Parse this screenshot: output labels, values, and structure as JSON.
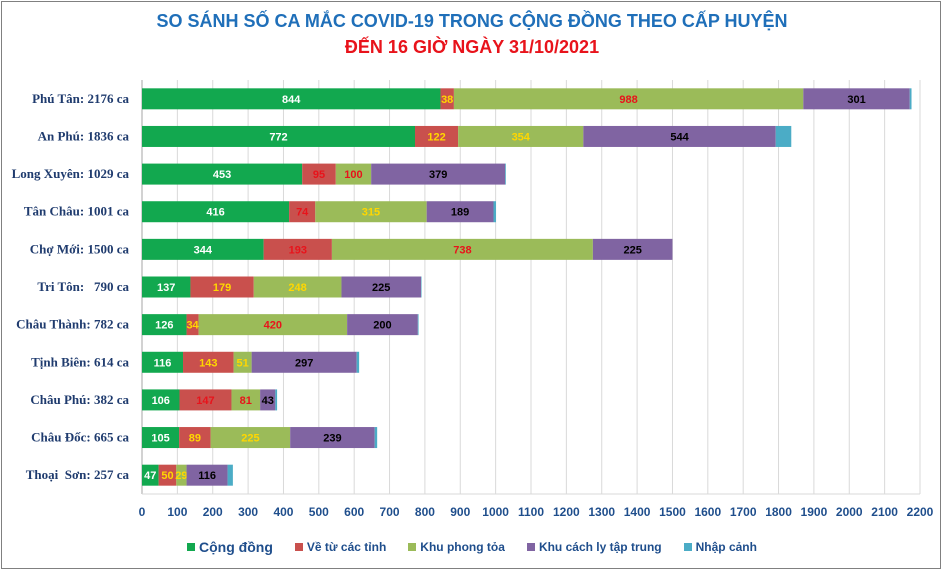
{
  "chart_data": {
    "type": "bar",
    "orientation": "horizontal",
    "stacked": true,
    "title": "SO SÁNH SỐ CA MẮC COVID-19 TRONG CỘNG ĐỒNG THEO CẤP HUYỆN",
    "subtitle": "ĐẾN 16 GIỜ NGÀY 31/10/2021",
    "categories": [
      "Phú Tân: 2176 ca",
      "An Phú: 1836 ca",
      "Long Xuyên: 1029 ca",
      "Tân Châu: 1001 ca",
      "Chợ Mới: 1500 ca",
      "Tri Tôn:   790 ca",
      "Châu Thành: 782 ca",
      "Tịnh Biên: 614 ca",
      "Châu Phú: 382 ca",
      "Châu Đốc: 665 ca",
      "Thoại  Sơn: 257 ca"
    ],
    "series": [
      {
        "name": "Cộng đồng",
        "color": "#12a84f",
        "label_color": "#ffffff",
        "values": [
          844,
          772,
          453,
          416,
          344,
          137,
          126,
          116,
          106,
          105,
          47
        ]
      },
      {
        "name": "Về từ các tỉnh",
        "color": "#c9504d",
        "label_color": "#ffd700",
        "values": [
          38,
          122,
          95,
          74,
          193,
          179,
          34,
          143,
          147,
          89,
          50
        ]
      },
      {
        "name": "Khu phong tỏa",
        "color": "#9bbb59",
        "label_color": "#e8131b",
        "values": [
          988,
          354,
          100,
          315,
          738,
          248,
          420,
          51,
          81,
          225,
          29
        ]
      },
      {
        "name": "Khu cách ly tập trung",
        "color": "#8064a2",
        "label_color": "#000000",
        "values": [
          301,
          544,
          379,
          189,
          225,
          225,
          200,
          297,
          43,
          239,
          116
        ]
      },
      {
        "name": "Nhập cảnh",
        "color": "#4bacc6",
        "label_color": "#000000",
        "values": [
          5,
          44,
          2,
          7,
          0,
          1,
          2,
          7,
          5,
          7,
          15
        ]
      }
    ],
    "label_colors_override": {
      "1": {
        "0": "#ffd700",
        "1": "#ffd700",
        "2": "#e8131b",
        "3": "#e8131b",
        "4": "#e8131b",
        "5": "#ffd700",
        "6": "#ffd700",
        "7": "#ffd700",
        "8": "#e8131b",
        "9": "#ffd700",
        "10": "#ffd700"
      },
      "2": {
        "0": "#e8131b",
        "1": "#ffd700",
        "2": "#e8131b",
        "3": "#ffd700",
        "4": "#e8131b",
        "5": "#ffd700",
        "6": "#e8131b",
        "7": "#ffd700",
        "8": "#e8131b",
        "9": "#ffd700",
        "10": "#ffd700"
      }
    },
    "show_labels": [
      true,
      true,
      true,
      true,
      false
    ],
    "xlim": [
      0,
      2200
    ],
    "xticks": [
      0,
      100,
      200,
      300,
      400,
      500,
      600,
      700,
      800,
      900,
      1000,
      1100,
      1200,
      1300,
      1400,
      1500,
      1600,
      1700,
      1800,
      1900,
      2000,
      2100,
      2200
    ],
    "grid": true,
    "legend_position": "bottom"
  }
}
